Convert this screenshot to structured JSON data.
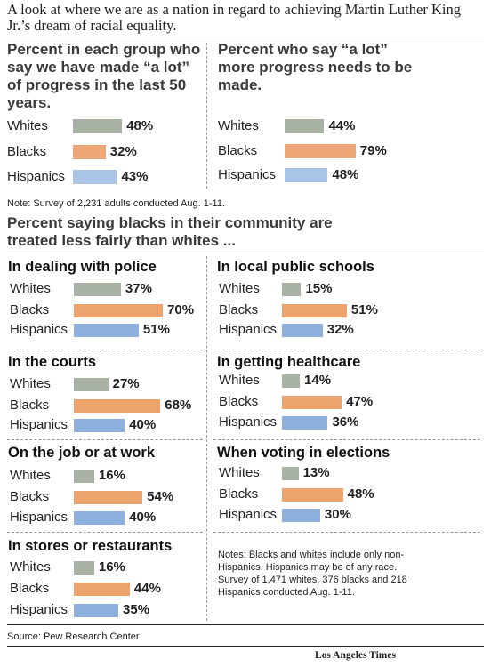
{
  "intro": "A look at where we are as a nation in regard to achieving Martin Luther King Jr.’s dream of racial equality.",
  "colors": {
    "whites": "#a8b3a5",
    "blacks": "#f0a778",
    "hispanics": "#a9c4e4",
    "blacks_panel": "#eda36c",
    "hispanics_panel": "#8eb0dc"
  },
  "survey_note": "Note: Survey of 2,231 adults conducted Aug. 1-11.",
  "section_title": "Percent saying blacks in their community are treated less fairly than whites ...",
  "notes_bottom": "Notes: Blacks and whites include only non-Hispanics. Hispanics may be of any race. Survey of 1,471 whites, 376 blacks and 218 Hispanics conducted Aug. 1-11.",
  "source": "Source: Pew Research Center",
  "credit": "Los Angeles Times",
  "chart_data": [
    {
      "type": "bar",
      "title": "Percent in each group who say we have made “a lot” of progress in the last 50 years.",
      "categories": [
        "Whites",
        "Blacks",
        "Hispanics"
      ],
      "values": [
        48,
        32,
        43
      ],
      "labels": [
        "48%",
        "32%",
        "43%"
      ]
    },
    {
      "type": "bar",
      "title": "Percent who say “a lot” more progress needs to be made.",
      "categories": [
        "Whites",
        "Blacks",
        "Hispanics"
      ],
      "values": [
        44,
        79,
        48
      ],
      "labels": [
        "44%",
        "79%",
        "48%"
      ]
    },
    {
      "type": "bar",
      "title": "In dealing with police",
      "categories": [
        "Whites",
        "Blacks",
        "Hispanics"
      ],
      "values": [
        37,
        70,
        51
      ],
      "labels": [
        "37%",
        "70%",
        "51%"
      ]
    },
    {
      "type": "bar",
      "title": "In local public schools",
      "categories": [
        "Whites",
        "Blacks",
        "Hispanics"
      ],
      "values": [
        15,
        51,
        32
      ],
      "labels": [
        "15%",
        "51%",
        "32%"
      ]
    },
    {
      "type": "bar",
      "title": "In the courts",
      "categories": [
        "Whites",
        "Blacks",
        "Hispanics"
      ],
      "values": [
        27,
        68,
        40
      ],
      "labels": [
        "27%",
        "68%",
        "40%"
      ]
    },
    {
      "type": "bar",
      "title": "In getting healthcare",
      "categories": [
        "Whites",
        "Blacks",
        "Hispanics"
      ],
      "values": [
        14,
        47,
        36
      ],
      "labels": [
        "14%",
        "47%",
        "36%"
      ]
    },
    {
      "type": "bar",
      "title": "On the job or at work",
      "categories": [
        "Whites",
        "Blacks",
        "Hispanics"
      ],
      "values": [
        16,
        54,
        40
      ],
      "labels": [
        "16%",
        "54%",
        "40%"
      ]
    },
    {
      "type": "bar",
      "title": "When voting in elections",
      "categories": [
        "Whites",
        "Blacks",
        "Hispanics"
      ],
      "values": [
        13,
        48,
        30
      ],
      "labels": [
        "13%",
        "48%",
        "30%"
      ]
    },
    {
      "type": "bar",
      "title": "In stores or restaurants",
      "categories": [
        "Whites",
        "Blacks",
        "Hispanics"
      ],
      "values": [
        16,
        44,
        35
      ],
      "labels": [
        "16%",
        "44%",
        "35%"
      ]
    }
  ]
}
